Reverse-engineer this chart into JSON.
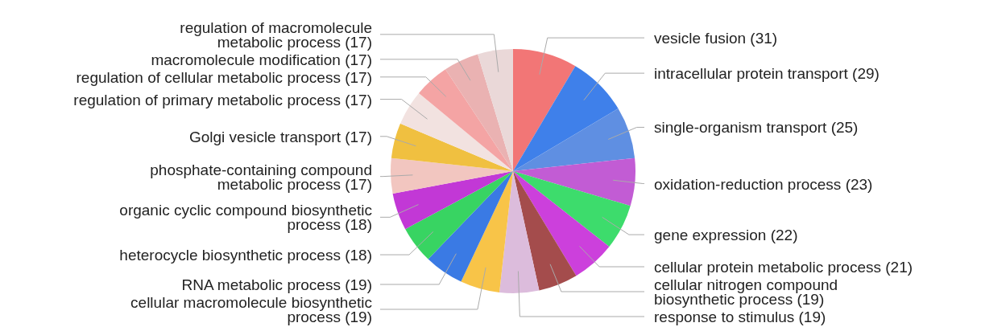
{
  "chart_data": {
    "type": "pie",
    "categories": [
      "vesicle fusion (31)",
      "intracellular protein transport (29)",
      "single-organism transport (25)",
      "oxidation-reduction process (23)",
      "gene expression (22)",
      "cellular protein metabolic process (21)",
      "cellular nitrogen compound biosynthetic process (19)",
      "response to stimulus (19)",
      "cellular macromolecule biosynthetic process (19)",
      "RNA metabolic process (19)",
      "heterocycle biosynthetic process (18)",
      "organic cyclic compound biosynthetic process (18)",
      "phosphate-containing compound metabolic process (17)",
      "Golgi vesicle transport (17)",
      "regulation of primary metabolic process (17)",
      "regulation of cellular metabolic process (17)",
      "macromolecule modification (17)",
      "regulation of macromolecule metabolic process (17)"
    ],
    "values": [
      31,
      29,
      25,
      23,
      22,
      21,
      19,
      19,
      19,
      19,
      18,
      18,
      17,
      17,
      17,
      17,
      17,
      17
    ],
    "colors": [
      "#f27676",
      "#3f80ea",
      "#5f8fe2",
      "#c25cd4",
      "#3ddc6c",
      "#cc40dc",
      "#a44c4c",
      "#dcbcdc",
      "#f8c448",
      "#3a7ae4",
      "#38d462",
      "#c238d6",
      "#f2c6c0",
      "#f0c040",
      "#f2e2e0",
      "#f4a4a4",
      "#eab2b2",
      "#ead8d8"
    ]
  }
}
